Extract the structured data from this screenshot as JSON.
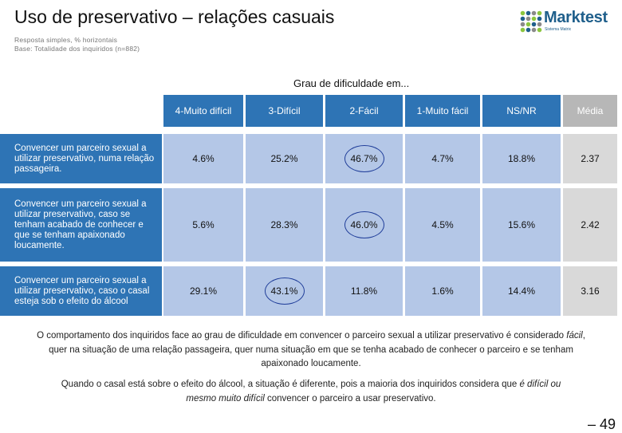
{
  "header": {
    "title": "Uso de preservativo – relações casuais",
    "sub1": "Resposta simples, % horizontais",
    "sub2": "Base: Totalidade dos inquiridos (n=882)"
  },
  "logo": {
    "name": "Marktest",
    "tagline": "Sistema Matrix",
    "dot_colors": [
      "#8cc63f",
      "#1f5f8b",
      "#8a8a8a"
    ]
  },
  "table": {
    "title": "Grau de dificuldade em...",
    "columns": [
      "4-Muito difícil",
      "3-Difícil",
      "2-Fácil",
      "1-Muito fácil",
      "NS/NR",
      "Média"
    ],
    "rows": [
      {
        "label": "Convencer um parceiro sexual a utilizar preservativo, numa relação passageira.",
        "values": [
          "4.6%",
          "25.2%",
          "46.7%",
          "4.7%",
          "18.8%",
          "2.37"
        ],
        "highlight": 2
      },
      {
        "label": "Convencer um parceiro sexual a utilizar preservativo, caso se tenham acabado de conhecer e que se tenham apaixonado loucamente.",
        "values": [
          "5.6%",
          "28.3%",
          "46.0%",
          "4.5%",
          "15.6%",
          "2.42"
        ],
        "highlight": 2
      },
      {
        "label": "Convencer um parceiro sexual a utilizar preservativo, caso o casal esteja sob o efeito do álcool",
        "values": [
          "29.1%",
          "43.1%",
          "11.8%",
          "1.6%",
          "14.4%",
          "3.16"
        ],
        "highlight": 1
      }
    ],
    "colors": {
      "header": "#2e74b5",
      "cell": "#b4c7e7",
      "avg_header": "#b7b7b7",
      "avg_cell": "#d9d9d9",
      "ring": "#1f3d99"
    }
  },
  "text": {
    "p1_a": "O comportamento dos inquiridos face ao grau de dificuldade em convencer o parceiro sexual a utilizar preservativo é considerado ",
    "p1_em": "fácil",
    "p1_b": ", quer na situação de uma relação passageira, quer numa situação em que se tenha acabado de conhecer o parceiro e se tenham apaixonado loucamente.",
    "p2_a": "Quando o casal está sobre o efeito do álcool, a situação é diferente, pois a maioria dos inquiridos considera que ",
    "p2_em": "é difícil ou mesmo muito difícil",
    "p2_b": " convencer o parceiro a usar preservativo."
  },
  "page": {
    "number": "– 49"
  }
}
